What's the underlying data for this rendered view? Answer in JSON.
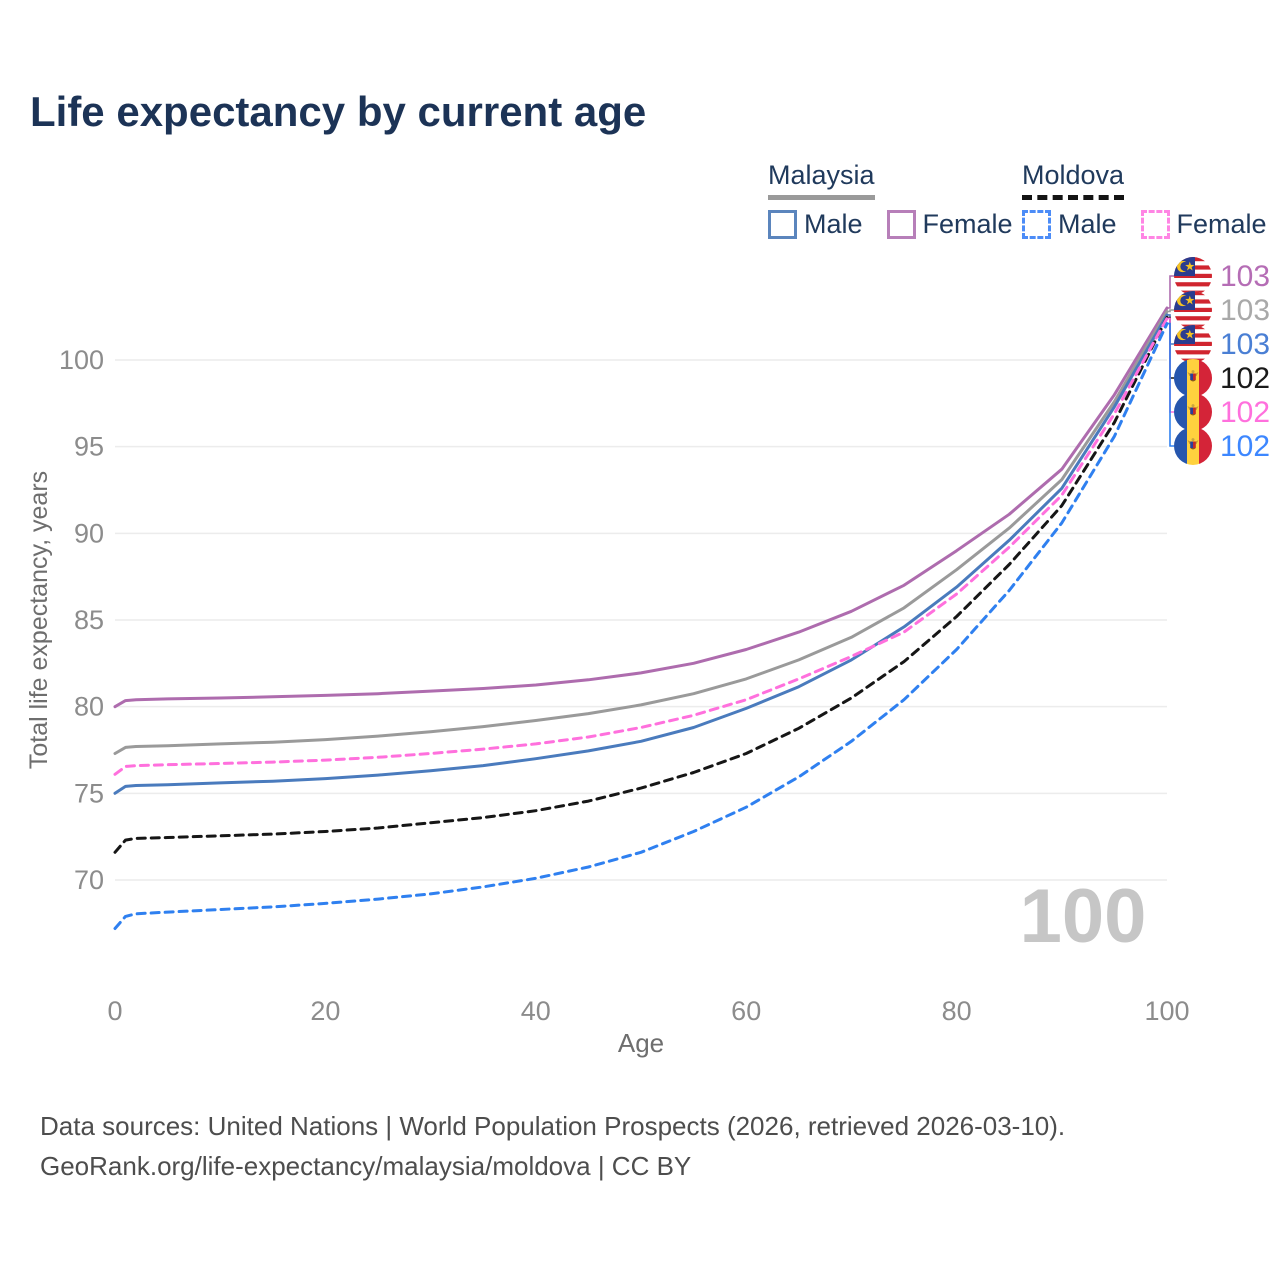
{
  "title": "Life expectancy by current age",
  "legend": {
    "groups": [
      {
        "title": "Malaysia",
        "line_style": "solid",
        "line_color": "#9a9a9a",
        "items": [
          {
            "label": "Male",
            "color": "#5b85bd"
          },
          {
            "label": "Female",
            "color": "#b77fb9"
          }
        ]
      },
      {
        "title": "Moldova",
        "line_style": "dashed",
        "line_color": "#141414",
        "items": [
          {
            "label": "Male",
            "color": "#4c8cf7"
          },
          {
            "label": "Female",
            "color": "#ff85e4"
          }
        ]
      }
    ]
  },
  "chart_data": {
    "type": "line",
    "title": "Life expectancy by current age",
    "xlabel": "Age",
    "ylabel": "Total life expectancy, years",
    "xlim": [
      0,
      100
    ],
    "ylim": [
      66,
      104
    ],
    "x_ticks": [
      0,
      20,
      40,
      60,
      80,
      100
    ],
    "y_ticks": [
      70,
      75,
      80,
      85,
      90,
      95,
      100
    ],
    "grid": "horizontal",
    "legend_position": "top-right",
    "watermark": "100",
    "ages": [
      0,
      1,
      2,
      5,
      10,
      15,
      20,
      25,
      30,
      35,
      40,
      45,
      50,
      55,
      60,
      65,
      70,
      75,
      80,
      85,
      90,
      95,
      100
    ],
    "series": [
      {
        "name": "Malaysia Female",
        "country": "Malaysia",
        "sex": "Female",
        "color": "#ae6cae",
        "dashed": false,
        "flag": "malaysia",
        "end_label": "103",
        "label_color": "#b56db5",
        "values": [
          80.0,
          80.35,
          80.4,
          80.45,
          80.5,
          80.57,
          80.65,
          80.75,
          80.9,
          81.05,
          81.25,
          81.55,
          81.95,
          82.5,
          83.3,
          84.3,
          85.5,
          87.0,
          89.0,
          91.1,
          93.7,
          98.0,
          103.0
        ]
      },
      {
        "name": "Malaysia Both sexes",
        "country": "Malaysia",
        "sex": "Both",
        "color": "#9a9a9a",
        "dashed": false,
        "flag": "malaysia",
        "end_label": "103",
        "label_color": "#a9a9a9",
        "values": [
          77.3,
          77.65,
          77.7,
          77.75,
          77.85,
          77.95,
          78.1,
          78.3,
          78.55,
          78.85,
          79.2,
          79.6,
          80.1,
          80.75,
          81.6,
          82.7,
          84.0,
          85.7,
          87.9,
          90.3,
          93.1,
          97.6,
          102.8
        ]
      },
      {
        "name": "Malaysia Male",
        "country": "Malaysia",
        "sex": "Male",
        "color": "#4a7bbd",
        "dashed": false,
        "flag": "malaysia",
        "end_label": "103",
        "label_color": "#4a7fd4",
        "values": [
          75.0,
          75.4,
          75.45,
          75.5,
          75.6,
          75.7,
          75.85,
          76.05,
          76.3,
          76.6,
          77.0,
          77.45,
          78.0,
          78.8,
          79.9,
          81.15,
          82.7,
          84.6,
          86.9,
          89.6,
          92.6,
          97.3,
          102.6
        ]
      },
      {
        "name": "Moldova Both sexes",
        "country": "Moldova",
        "sex": "Both",
        "color": "#161616",
        "dashed": true,
        "flag": "moldova",
        "end_label": "102",
        "label_color": "#1a1a1a",
        "values": [
          71.6,
          72.3,
          72.4,
          72.45,
          72.55,
          72.65,
          72.8,
          73.0,
          73.3,
          73.6,
          74.0,
          74.55,
          75.3,
          76.2,
          77.3,
          78.75,
          80.5,
          82.6,
          85.2,
          88.2,
          91.6,
          96.4,
          102.45
        ]
      },
      {
        "name": "Moldova Female",
        "country": "Moldova",
        "sex": "Female",
        "color": "#ff70dd",
        "dashed": true,
        "flag": "moldova",
        "end_label": "102",
        "label_color": "#ff70dd",
        "values": [
          76.1,
          76.55,
          76.6,
          76.65,
          76.72,
          76.8,
          76.92,
          77.08,
          77.3,
          77.55,
          77.85,
          78.25,
          78.8,
          79.5,
          80.4,
          81.6,
          82.9,
          84.3,
          86.5,
          89.2,
          92.2,
          96.9,
          102.4
        ]
      },
      {
        "name": "Moldova Male",
        "country": "Moldova",
        "sex": "Male",
        "color": "#2f80f0",
        "dashed": true,
        "flag": "moldova",
        "end_label": "102",
        "label_color": "#3d87ff",
        "values": [
          67.2,
          67.9,
          68.05,
          68.15,
          68.3,
          68.45,
          68.65,
          68.9,
          69.2,
          69.6,
          70.1,
          70.75,
          71.6,
          72.8,
          74.2,
          75.95,
          78.0,
          80.4,
          83.3,
          86.7,
          90.6,
          95.6,
          102.1
        ]
      }
    ],
    "end_label_order": [
      "Malaysia Female",
      "Malaysia Both sexes",
      "Malaysia Male",
      "Moldova Both sexes",
      "Moldova Female",
      "Moldova Male"
    ]
  },
  "footer": {
    "line1": "Data sources: United Nations | World Population Prospects (2026, retrieved 2026-03-10).",
    "line2": "GeoRank.org/life-expectancy/malaysia/moldova | CC BY"
  }
}
